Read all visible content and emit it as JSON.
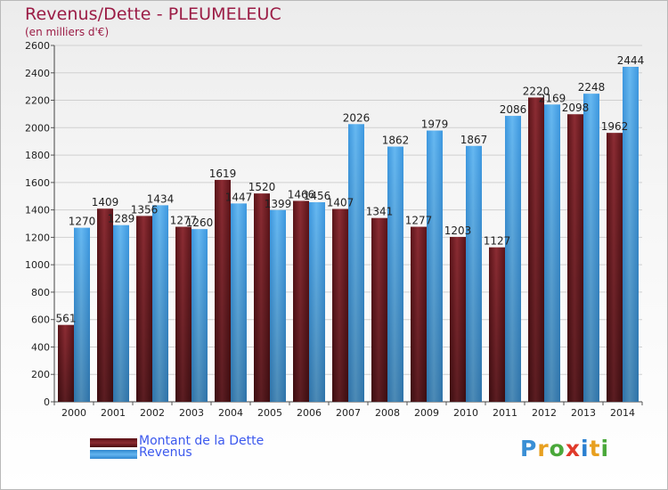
{
  "title": "Revenus/Dette - PLEUMELEUC",
  "subtitle": "(en milliers d'€)",
  "colors": {
    "title": "#9b1c45",
    "debt_top": "#8a2a30",
    "debt_bottom": "#4a0a10",
    "revenue_top": "#5db0ee",
    "revenue_bottom": "#2f86cf",
    "legend_text": "#3c59ee"
  },
  "chart_data": {
    "type": "bar",
    "categories": [
      "2000",
      "2001",
      "2002",
      "2003",
      "2004",
      "2005",
      "2006",
      "2007",
      "2008",
      "2009",
      "2010",
      "2011",
      "2012",
      "2013",
      "2014"
    ],
    "series": [
      {
        "name": "Montant de la Dette",
        "values": [
          561,
          1409,
          1356,
          1277,
          1619,
          1520,
          1466,
          1407,
          1341,
          1277,
          1203,
          1127,
          2220,
          2098,
          1962
        ],
        "labels": [
          "561",
          "1409",
          "1356",
          "1277",
          "1619",
          "1520",
          "1466",
          "1407",
          "1341",
          "1277",
          "1203",
          "1127",
          "2220",
          "2098",
          "1962"
        ]
      },
      {
        "name": "Revenus",
        "values": [
          1270,
          1289,
          1434,
          1260,
          1447,
          1399,
          1456,
          2026,
          1862,
          1979,
          1867,
          2086,
          2169,
          2248,
          2444
        ],
        "labels": [
          "1270",
          "1289",
          "1434",
          "1260",
          "1447",
          "1399",
          "1456",
          "2026",
          "1862",
          "1979",
          "1867",
          "2086",
          "2169",
          "2248",
          "2444"
        ]
      }
    ],
    "ylim": [
      0,
      2600
    ],
    "yticks": [
      0,
      200,
      400,
      600,
      800,
      1000,
      1200,
      1400,
      1600,
      1800,
      2000,
      2200,
      2400,
      2600
    ],
    "grid": true,
    "legend_position": "bottom-left"
  },
  "legend": {
    "debt_label": "Montant de la Dette",
    "revenue_label": "Revenus"
  },
  "logo": {
    "text": "Proxiti",
    "letter_colors": [
      "#3a8fd5",
      "#e8a020",
      "#4aa83a",
      "#e03a2a",
      "#2a7fd0",
      "#e8a020",
      "#4aa83a"
    ]
  }
}
